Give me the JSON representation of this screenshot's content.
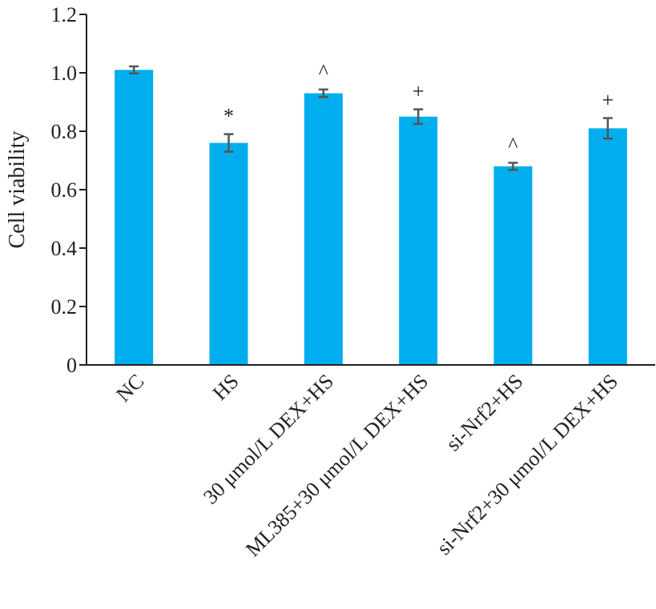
{
  "chart_data": {
    "type": "bar",
    "ylabel": "Cell viability",
    "xlabel": "",
    "ylim": [
      0,
      1.2
    ],
    "yticks": [
      "0",
      "0.2",
      "0.4",
      "0.6",
      "0.8",
      "1.0",
      "1.2"
    ],
    "ytick_values": [
      0,
      0.2,
      0.4,
      0.6,
      0.8,
      1.0,
      1.2
    ],
    "categories": [
      "NC",
      "HS",
      "30 μmol/L DEX+HS",
      "ML385+30 μmol/L DEX+HS",
      "si-Nrf2+HS",
      "si-Nrf2+30 μmol/L DEX+HS"
    ],
    "values": [
      1.01,
      0.76,
      0.93,
      0.85,
      0.68,
      0.81
    ],
    "errors": [
      0.012,
      0.03,
      0.013,
      0.025,
      0.012,
      0.035
    ],
    "annotations": [
      "",
      "*",
      "^",
      "+",
      "^",
      "+"
    ],
    "bar_color": "#00aeef",
    "error_color": "#555555",
    "axis_color": "#231f20",
    "grid": false,
    "legend": "none"
  }
}
